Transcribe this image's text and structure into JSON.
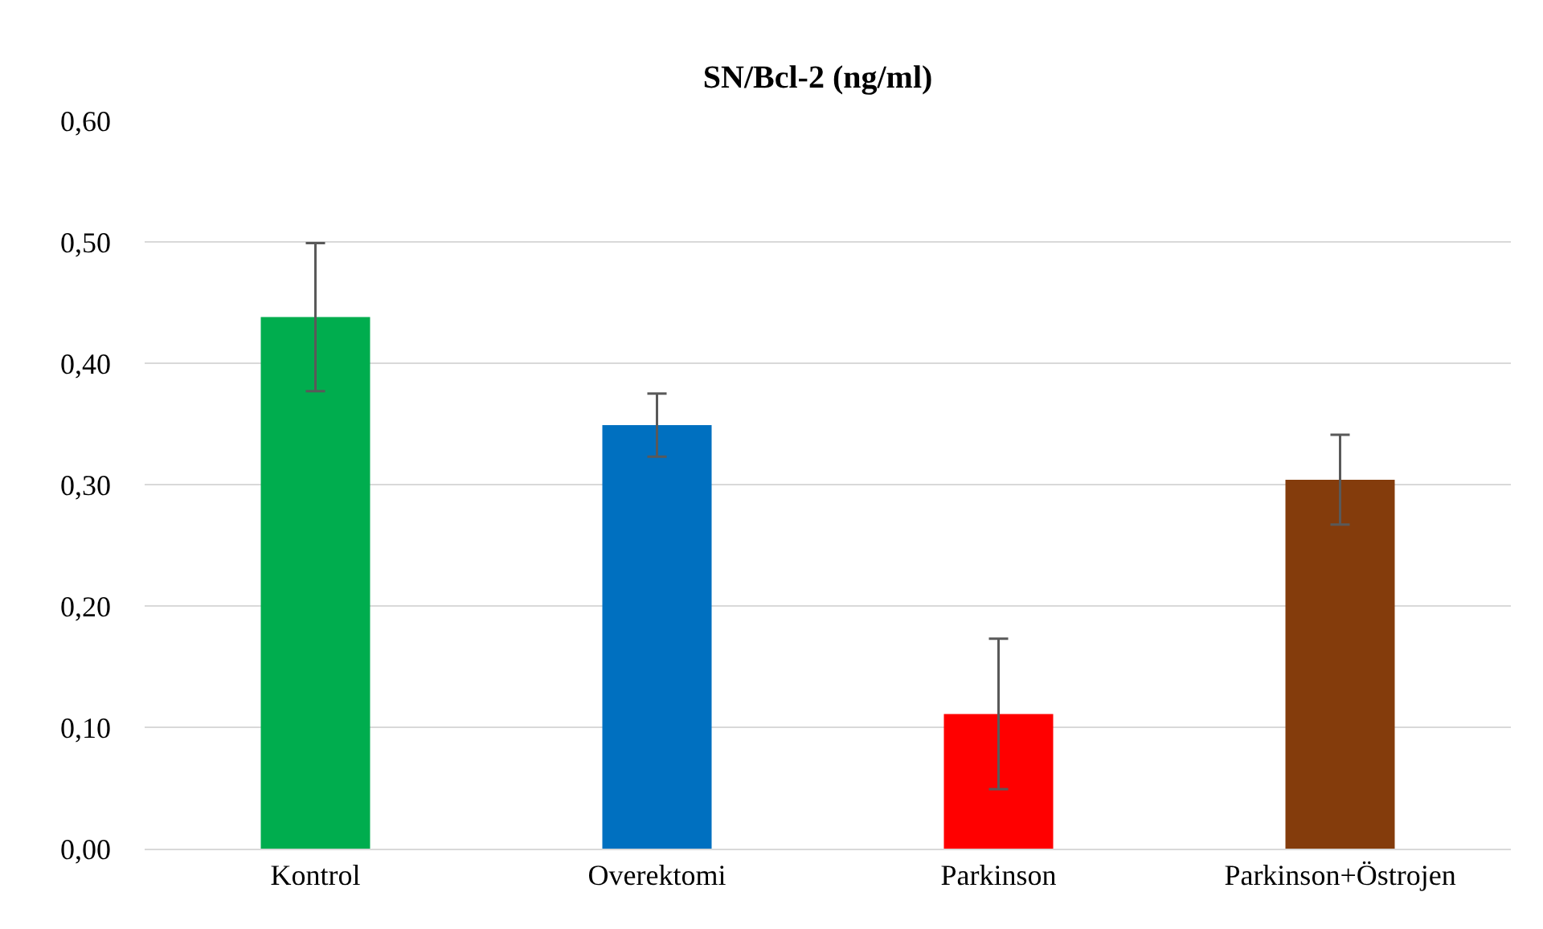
{
  "chart_data": {
    "type": "bar",
    "title": "SN/Bcl-2 (ng/ml)",
    "categories": [
      "Kontrol",
      "Overektomi",
      "Parkinson",
      "Parkinson+Östrojen"
    ],
    "values": [
      0.438,
      0.349,
      0.111,
      0.304
    ],
    "colors": [
      "#00ad4e",
      "#0070c0",
      "#ff0000",
      "#843c0c"
    ],
    "errors": [
      0.061,
      0.026,
      0.062,
      0.037
    ],
    "ylim": [
      0,
      0.6
    ],
    "yticks": [
      {
        "value": 0,
        "label": "0,00"
      },
      {
        "value": 0.1,
        "label": "0,10"
      },
      {
        "value": 0.2,
        "label": "0,20"
      },
      {
        "value": 0.3,
        "label": "0,30"
      },
      {
        "value": 0.4,
        "label": "0,40"
      },
      {
        "value": 0.5,
        "label": "0,50"
      },
      {
        "value": 0.6,
        "label": "0,60"
      }
    ],
    "grid": "y",
    "legend": false
  }
}
